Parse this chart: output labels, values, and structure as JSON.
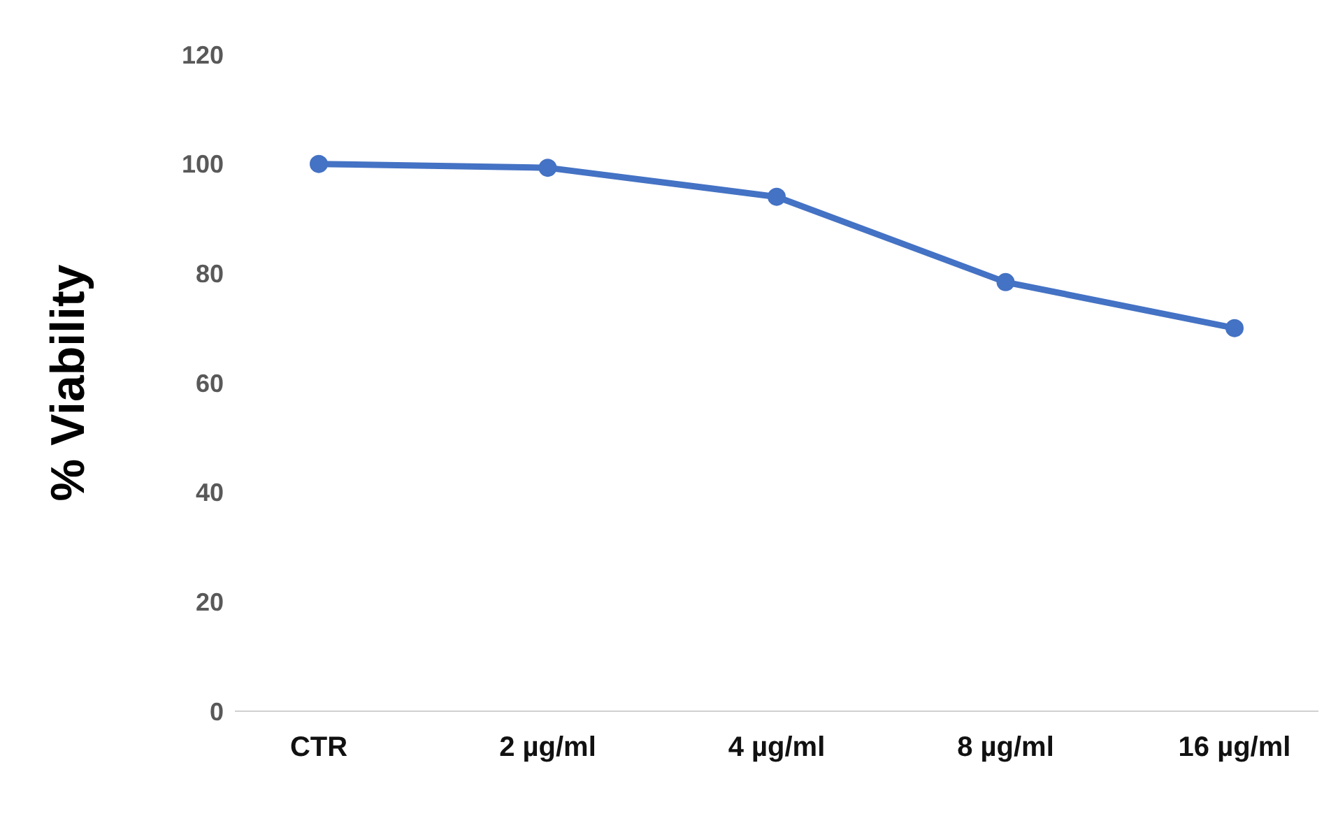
{
  "chart_data": {
    "type": "line",
    "ylabel": "% Viability",
    "categories": [
      "CTR",
      "2 µg/ml",
      "4 µg/ml",
      "8 µg/ml",
      "16 µg/ml"
    ],
    "series": [
      {
        "color": "#4472c4",
        "values": [
          100,
          99.3,
          94,
          78.4,
          70
        ]
      }
    ],
    "ylim": [
      0,
      120
    ],
    "yticks": [
      0,
      20,
      40,
      60,
      80,
      100,
      120
    ],
    "grid": false,
    "legend": false,
    "marker": "circle",
    "line_style": "solid"
  }
}
